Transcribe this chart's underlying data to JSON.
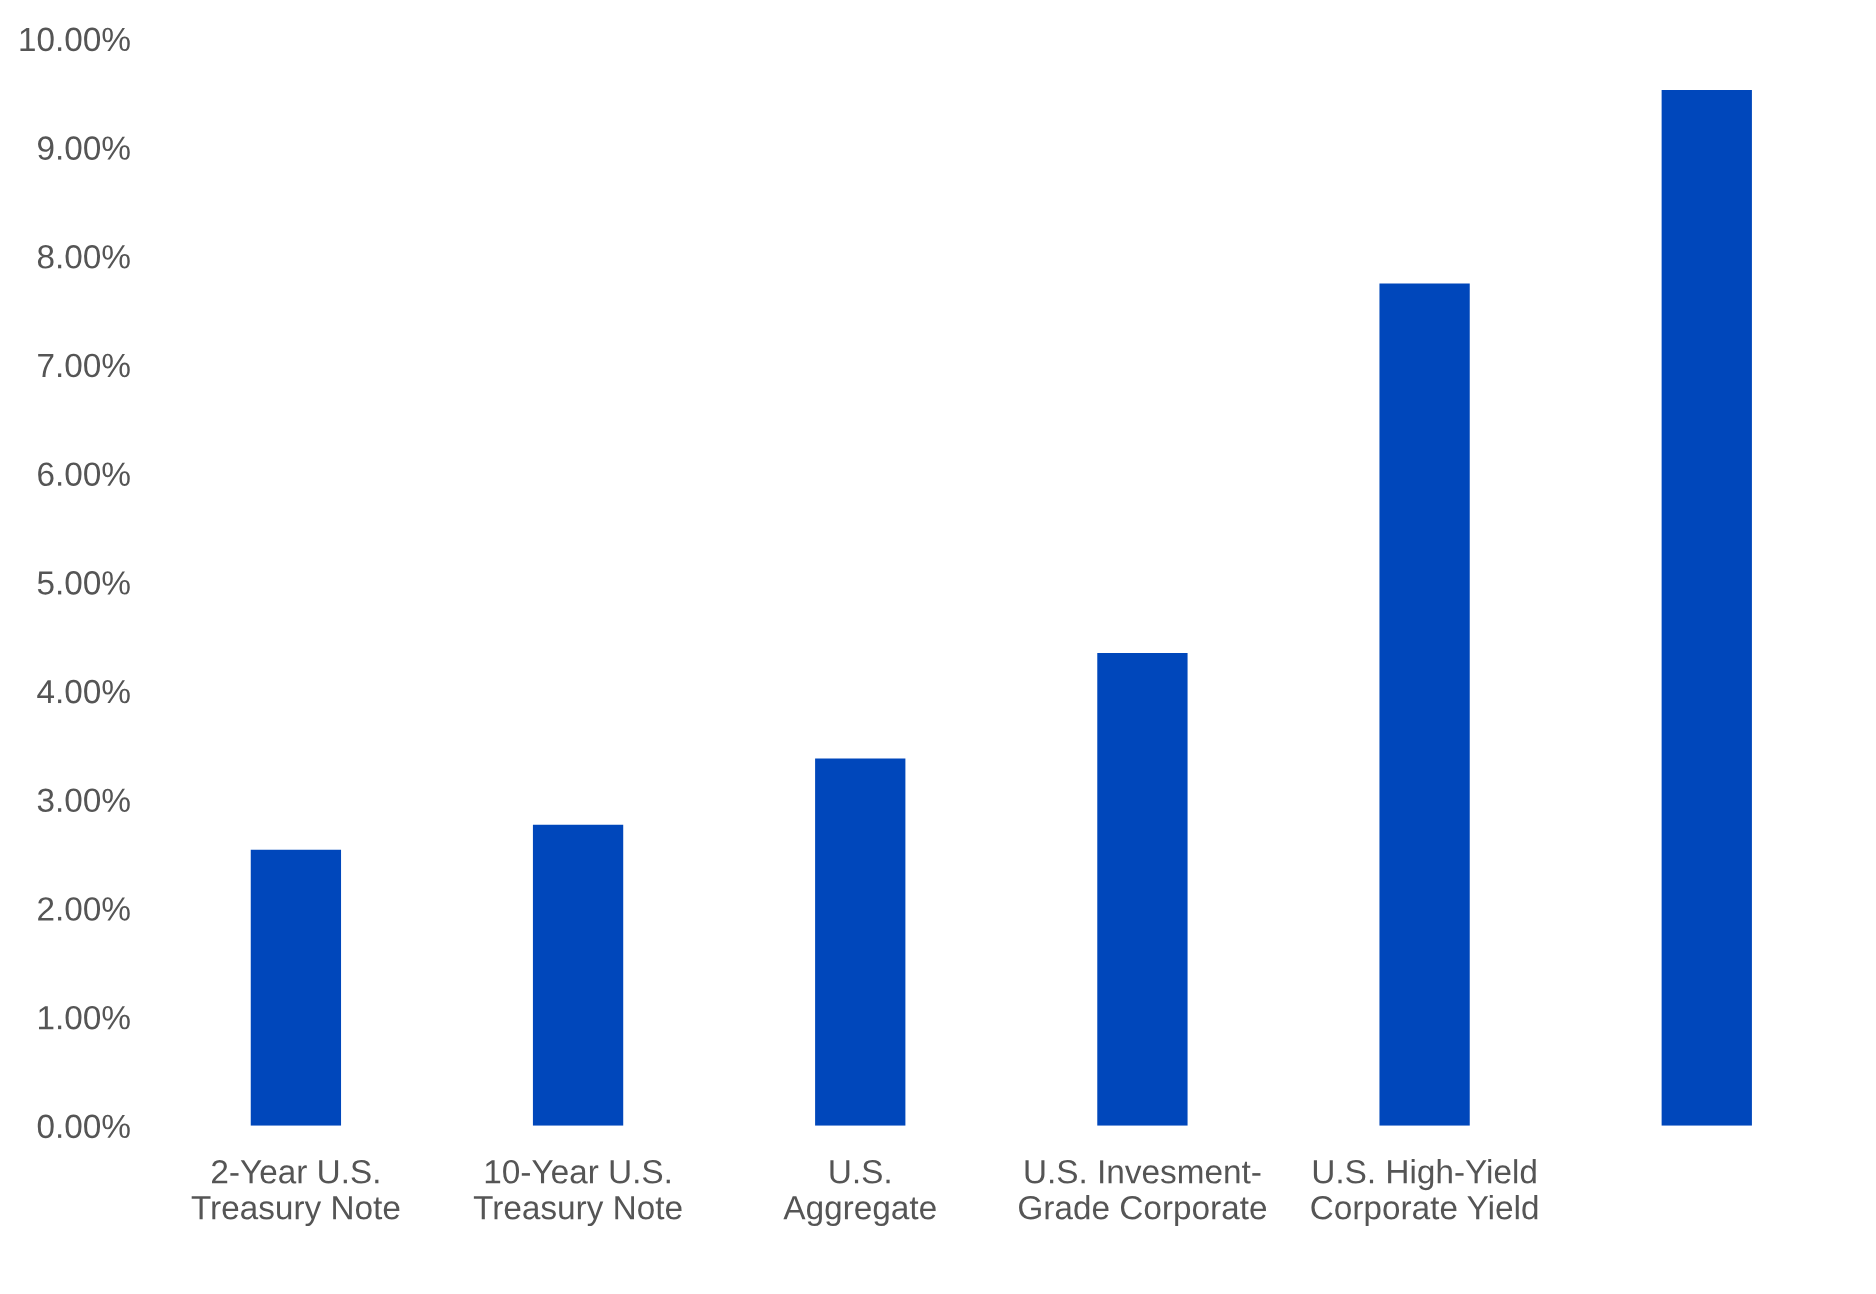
{
  "chart_data": {
    "type": "bar",
    "categories": [
      "2-Year U.S.\nTreasury Note",
      "10-Year U.S.\nTreasury Note",
      "U.S.\nAggregate",
      "U.S. Invesment-\nGrade Corporate",
      "U.S. High-Yield\nCorporate Yield",
      null
    ],
    "values": [
      2.54,
      2.77,
      3.38,
      4.35,
      7.75,
      9.53
    ],
    "color": "#0047bb",
    "ylim": [
      0,
      10
    ],
    "yticks": [
      {
        "value": 0,
        "label": "0.00%"
      },
      {
        "value": 1,
        "label": "1.00%"
      },
      {
        "value": 2,
        "label": "2.00%"
      },
      {
        "value": 3,
        "label": "3.00%"
      },
      {
        "value": 4,
        "label": "4.00%"
      },
      {
        "value": 5,
        "label": "5.00%"
      },
      {
        "value": 6,
        "label": "6.00%"
      },
      {
        "value": 7,
        "label": "7.00%"
      },
      {
        "value": 8,
        "label": "8.00%"
      },
      {
        "value": 9,
        "label": "9.00%"
      },
      {
        "value": 10,
        "label": "10.00%"
      }
    ],
    "grid": false
  }
}
